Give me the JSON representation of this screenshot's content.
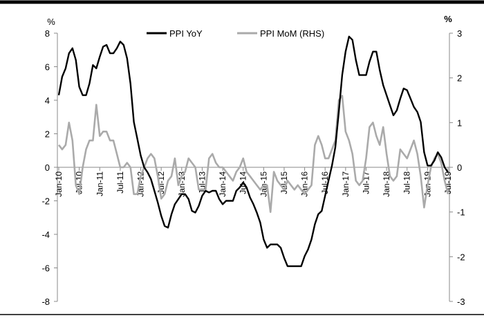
{
  "chart_data": {
    "type": "line",
    "left_unit": "%",
    "right_unit": "%",
    "y_left_ticks": [
      "8",
      "6",
      "4",
      "2",
      "0",
      "-2",
      "-4",
      "-6",
      "-8"
    ],
    "y_right_ticks": [
      "3",
      "2",
      "1",
      "0",
      "-1",
      "-2",
      "-3"
    ],
    "ylim_left": [
      -8,
      8
    ],
    "ylim_right": [
      -3,
      3
    ],
    "x_tick_labels": [
      "Jan-10",
      "Jul-10",
      "Jan-11",
      "Jul-11",
      "Jan-12",
      "Jul-12",
      "Jan-13",
      "Jul-13",
      "Jan-14",
      "Jul-14",
      "Jan-15",
      "Jul-15",
      "Jan-16",
      "Jul-16",
      "Jan-17",
      "Jul-17",
      "Jan-18",
      "Jul-18",
      "Jan-19",
      "Jul-19"
    ],
    "x_start": "2010-01",
    "x_end": "2019-07",
    "legend_position": "top",
    "grid": false,
    "series": [
      {
        "name": "PPI YoY",
        "axis": "left",
        "color": "#000000",
        "values": [
          4.3,
          5.4,
          5.9,
          6.8,
          7.1,
          6.4,
          4.8,
          4.3,
          4.3,
          5.0,
          6.1,
          5.9,
          6.6,
          7.2,
          7.3,
          6.8,
          6.8,
          7.1,
          7.5,
          7.3,
          6.5,
          5.0,
          2.7,
          1.7,
          0.7,
          0.0,
          -0.3,
          -0.7,
          -1.4,
          -2.1,
          -2.9,
          -3.5,
          -3.6,
          -2.8,
          -2.2,
          -1.9,
          -1.6,
          -1.6,
          -1.9,
          -2.6,
          -2.7,
          -2.3,
          -1.7,
          -1.4,
          -1.5,
          -1.4,
          -1.4,
          -1.9,
          -2.2,
          -2.0,
          -2.0,
          -2.0,
          -1.4,
          -1.2,
          -0.9,
          -1.2,
          -1.8,
          -2.2,
          -2.7,
          -3.3,
          -4.3,
          -4.8,
          -4.6,
          -4.6,
          -4.6,
          -4.8,
          -5.4,
          -5.9,
          -5.9,
          -5.9,
          -5.9,
          -5.9,
          -5.3,
          -4.9,
          -4.3,
          -3.4,
          -2.8,
          -2.6,
          -1.7,
          -0.8,
          0.1,
          1.2,
          3.3,
          5.5,
          6.9,
          7.8,
          7.6,
          6.4,
          5.5,
          5.5,
          5.5,
          6.3,
          6.9,
          6.9,
          5.8,
          4.9,
          4.3,
          3.7,
          3.1,
          3.4,
          4.1,
          4.7,
          4.6,
          4.1,
          3.6,
          3.3,
          2.7,
          0.9,
          0.1,
          0.1,
          0.4,
          0.9,
          0.6,
          0.0,
          -0.3
        ]
      },
      {
        "name": "PPI MoM (RHS)",
        "axis": "right",
        "color": "#aaaaaa",
        "values": [
          0.5,
          0.4,
          0.5,
          1.0,
          0.6,
          -0.4,
          -0.6,
          0.0,
          0.4,
          0.6,
          0.6,
          1.4,
          0.7,
          0.8,
          0.8,
          0.6,
          0.6,
          0.3,
          0.0,
          0.0,
          0.1,
          0.0,
          -0.6,
          -0.6,
          -0.2,
          0.0,
          0.2,
          0.3,
          0.2,
          -0.2,
          -0.7,
          -0.6,
          -0.3,
          -0.2,
          0.2,
          -0.4,
          -0.2,
          -0.1,
          0.2,
          0.1,
          0.0,
          -0.5,
          -0.5,
          -0.5,
          0.2,
          0.3,
          0.1,
          0.0,
          0.0,
          -0.1,
          -0.2,
          -0.3,
          -0.1,
          0.0,
          0.2,
          -0.1,
          -0.2,
          -0.3,
          -0.4,
          -0.5,
          -0.4,
          -0.4,
          -1.0,
          -0.1,
          -0.3,
          -0.4,
          -0.5,
          -0.3,
          -0.4,
          -0.5,
          -0.4,
          -0.5,
          -0.6,
          -0.5,
          -0.4,
          0.5,
          0.7,
          0.5,
          0.2,
          0.2,
          0.4,
          0.6,
          1.5,
          1.6,
          0.8,
          0.6,
          0.3,
          -0.3,
          -0.4,
          -0.3,
          0.2,
          0.9,
          1.0,
          0.7,
          0.5,
          0.9,
          0.3,
          -0.2,
          -0.3,
          -0.2,
          0.4,
          0.3,
          0.2,
          0.4,
          0.6,
          0.3,
          -0.2,
          -0.9,
          -0.4,
          0.0,
          0.2,
          0.3,
          0.1,
          -0.3,
          -0.6
        ]
      }
    ]
  }
}
